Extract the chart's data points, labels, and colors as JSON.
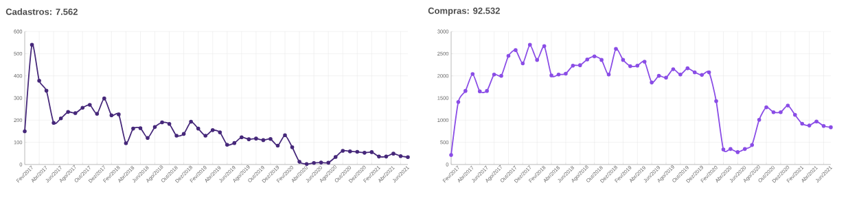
{
  "chart_data": [
    {
      "type": "line",
      "title": "Cadastros: 7.562",
      "categories": [
        "Fev/2017",
        null,
        "Abr/2017",
        null,
        "Jun/2017",
        null,
        "Ago/2017",
        null,
        "Out/2017",
        null,
        "Dez/2017",
        null,
        "Fev/2018",
        null,
        "Abr/2018",
        null,
        "Jun/2018",
        null,
        "Ago/2018",
        null,
        "Out/2018",
        null,
        "Dez/2018",
        null,
        "Fev/2019",
        null,
        "Abr/2019",
        null,
        "Jun/2019",
        null,
        "Ago/2019",
        null,
        "Out/2019",
        null,
        "Dez/2019",
        null,
        "Fev/2020",
        null,
        "Abr/2020",
        null,
        "Jun/2020",
        null,
        "Ago/2020",
        null,
        "Out/2020",
        null,
        "Dez/2020",
        null,
        "Fev/2021",
        null,
        "Abr/2021",
        null,
        "Jun/2021",
        null
      ],
      "series": [
        {
          "color": "#46287a",
          "values": [
            150,
            540,
            378,
            333,
            188,
            208,
            237,
            232,
            256,
            269,
            229,
            298,
            222,
            226,
            96,
            162,
            164,
            120,
            169,
            190,
            183,
            130,
            138,
            193,
            162,
            130,
            155,
            145,
            89,
            97,
            123,
            114,
            117,
            110,
            115,
            85,
            132,
            78,
            12,
            2,
            7,
            9,
            8,
            34,
            62,
            59,
            57,
            53,
            56,
            36,
            36,
            49,
            38,
            33
          ]
        }
      ],
      "ylim": [
        0,
        600
      ],
      "yticks": [
        0,
        100,
        200,
        300,
        400,
        500,
        600
      ],
      "grid": true,
      "marker": "circle",
      "line_style": "solid"
    },
    {
      "type": "line",
      "title": "Compras: 92.532",
      "categories": [
        "Fev/2017",
        null,
        "Abr/2017",
        null,
        "Jun/2017",
        null,
        "Ago/2017",
        null,
        "Out/2017",
        null,
        "Dez/2017",
        null,
        "Fev/2018",
        null,
        "Abr/2018",
        null,
        "Jun/2018",
        null,
        "Ago/2018",
        null,
        "Out/2018",
        null,
        "Dez/2018",
        null,
        "Fev/2019",
        null,
        "Abr/2019",
        null,
        "Jun/2019",
        null,
        "Ago/2019",
        null,
        "Out/2019",
        null,
        "Dez/2019",
        null,
        "Fev/2020",
        null,
        "Abr/2020",
        null,
        "Jun/2020",
        null,
        "Ago/2020",
        null,
        "Out/2020",
        null,
        "Dez/2020",
        null,
        "Fev/2021",
        null,
        "Abr/2021",
        null,
        "Jun/2021",
        null
      ],
      "series": [
        {
          "color": "#8a4de6",
          "values": [
            215,
            1410,
            1660,
            2040,
            1650,
            1660,
            2030,
            2000,
            2450,
            2580,
            2280,
            2700,
            2360,
            2670,
            2010,
            2030,
            2050,
            2230,
            2240,
            2370,
            2440,
            2360,
            2030,
            2610,
            2360,
            2220,
            2230,
            2320,
            1850,
            2000,
            1960,
            2150,
            2030,
            2170,
            2080,
            2020,
            2080,
            1430,
            340,
            350,
            280,
            350,
            440,
            1010,
            1290,
            1180,
            1180,
            1330,
            1120,
            920,
            880,
            970,
            870,
            840
          ]
        }
      ],
      "ylim": [
        0,
        3000
      ],
      "yticks": [
        0,
        500,
        1000,
        1500,
        2000,
        2500,
        3000
      ],
      "grid": true,
      "marker": "circle",
      "line_style": "solid"
    }
  ]
}
